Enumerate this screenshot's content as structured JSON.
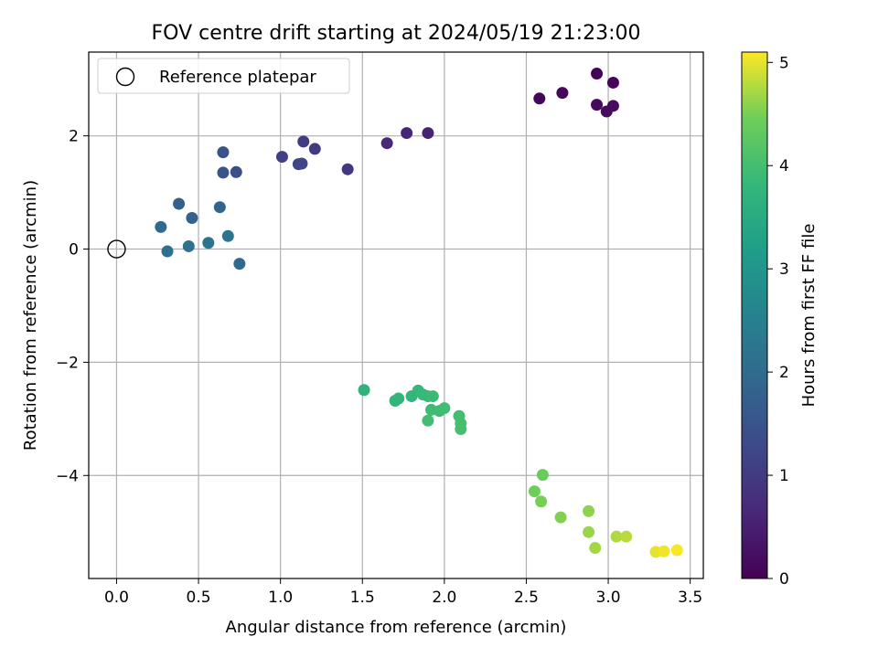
{
  "chart_data": {
    "type": "scatter",
    "title": "FOV centre drift starting at 2024/05/19 21:23:00",
    "xlabel": "Angular distance from reference (arcmin)",
    "ylabel": "Rotation from reference (arcmin)",
    "xlim": [
      -0.17,
      3.58
    ],
    "ylim": [
      -5.82,
      3.48
    ],
    "xticks": [
      0.0,
      0.5,
      1.0,
      1.5,
      2.0,
      2.5,
      3.0,
      3.5
    ],
    "xtick_labels": [
      "0.0",
      "0.5",
      "1.0",
      "1.5",
      "2.0",
      "2.5",
      "3.0",
      "3.5"
    ],
    "yticks": [
      2,
      0,
      -2,
      -4
    ],
    "ytick_labels": [
      "2",
      "0",
      "−2",
      "−4"
    ],
    "grid": true,
    "legend": {
      "placement": "top-left",
      "entries": [
        "Reference platepar"
      ]
    },
    "reference_point": {
      "x": 0.0,
      "y": 0.0
    },
    "colorbar": {
      "label": "Hours from first FF file",
      "range": [
        0,
        5.1
      ],
      "ticks": [
        0,
        1,
        2,
        3,
        4,
        5
      ],
      "tick_labels": [
        "0",
        "1",
        "2",
        "3",
        "4",
        "5"
      ],
      "colormap": "viridis"
    },
    "points": [
      {
        "x": 2.93,
        "y": 3.1,
        "c": 0.05
      },
      {
        "x": 3.03,
        "y": 2.94,
        "c": 0.08
      },
      {
        "x": 2.58,
        "y": 2.66,
        "c": 0.1
      },
      {
        "x": 2.72,
        "y": 2.76,
        "c": 0.12
      },
      {
        "x": 2.93,
        "y": 2.55,
        "c": 0.14
      },
      {
        "x": 3.03,
        "y": 2.53,
        "c": 0.16
      },
      {
        "x": 2.99,
        "y": 2.43,
        "c": 0.18
      },
      {
        "x": 1.9,
        "y": 2.05,
        "c": 0.55
      },
      {
        "x": 1.77,
        "y": 2.05,
        "c": 0.6
      },
      {
        "x": 1.65,
        "y": 1.87,
        "c": 0.65
      },
      {
        "x": 1.41,
        "y": 1.41,
        "c": 0.95
      },
      {
        "x": 1.21,
        "y": 1.77,
        "c": 1.0
      },
      {
        "x": 1.14,
        "y": 1.9,
        "c": 1.05
      },
      {
        "x": 1.01,
        "y": 1.63,
        "c": 1.1
      },
      {
        "x": 1.11,
        "y": 1.5,
        "c": 1.15
      },
      {
        "x": 1.13,
        "y": 1.51,
        "c": 1.2
      },
      {
        "x": 0.73,
        "y": 1.36,
        "c": 1.4
      },
      {
        "x": 0.65,
        "y": 1.71,
        "c": 1.45
      },
      {
        "x": 0.65,
        "y": 1.35,
        "c": 1.5
      },
      {
        "x": 0.38,
        "y": 0.8,
        "c": 1.75
      },
      {
        "x": 0.46,
        "y": 0.55,
        "c": 1.8
      },
      {
        "x": 0.63,
        "y": 0.74,
        "c": 1.85
      },
      {
        "x": 0.27,
        "y": 0.39,
        "c": 1.95
      },
      {
        "x": 0.75,
        "y": -0.26,
        "c": 1.95
      },
      {
        "x": 0.31,
        "y": -0.04,
        "c": 2.1
      },
      {
        "x": 0.44,
        "y": 0.05,
        "c": 2.15
      },
      {
        "x": 0.56,
        "y": 0.11,
        "c": 2.2
      },
      {
        "x": 0.68,
        "y": 0.23,
        "c": 2.25
      },
      {
        "x": 1.51,
        "y": -2.49,
        "c": 3.7
      },
      {
        "x": 1.7,
        "y": -2.68,
        "c": 3.75
      },
      {
        "x": 1.72,
        "y": -2.64,
        "c": 3.78
      },
      {
        "x": 1.8,
        "y": -2.6,
        "c": 3.8
      },
      {
        "x": 1.84,
        "y": -2.5,
        "c": 3.82
      },
      {
        "x": 1.87,
        "y": -2.57,
        "c": 3.85
      },
      {
        "x": 1.9,
        "y": -2.6,
        "c": 3.88
      },
      {
        "x": 1.93,
        "y": -2.6,
        "c": 3.9
      },
      {
        "x": 1.92,
        "y": -2.84,
        "c": 3.92
      },
      {
        "x": 1.97,
        "y": -2.86,
        "c": 3.94
      },
      {
        "x": 2.0,
        "y": -2.81,
        "c": 3.96
      },
      {
        "x": 1.9,
        "y": -3.03,
        "c": 3.98
      },
      {
        "x": 2.09,
        "y": -2.95,
        "c": 4.0
      },
      {
        "x": 2.1,
        "y": -3.08,
        "c": 4.02
      },
      {
        "x": 2.1,
        "y": -3.18,
        "c": 4.04
      },
      {
        "x": 2.6,
        "y": -3.99,
        "c": 4.4
      },
      {
        "x": 2.55,
        "y": -4.28,
        "c": 4.45
      },
      {
        "x": 2.59,
        "y": -4.46,
        "c": 4.5
      },
      {
        "x": 2.71,
        "y": -4.74,
        "c": 4.55
      },
      {
        "x": 2.88,
        "y": -4.63,
        "c": 4.6
      },
      {
        "x": 2.88,
        "y": -5.0,
        "c": 4.65
      },
      {
        "x": 2.92,
        "y": -5.28,
        "c": 4.7
      },
      {
        "x": 3.05,
        "y": -5.08,
        "c": 4.75
      },
      {
        "x": 3.11,
        "y": -5.08,
        "c": 4.8
      },
      {
        "x": 3.29,
        "y": -5.35,
        "c": 5.0
      },
      {
        "x": 3.34,
        "y": -5.34,
        "c": 5.05
      },
      {
        "x": 3.42,
        "y": -5.32,
        "c": 5.08
      }
    ]
  }
}
